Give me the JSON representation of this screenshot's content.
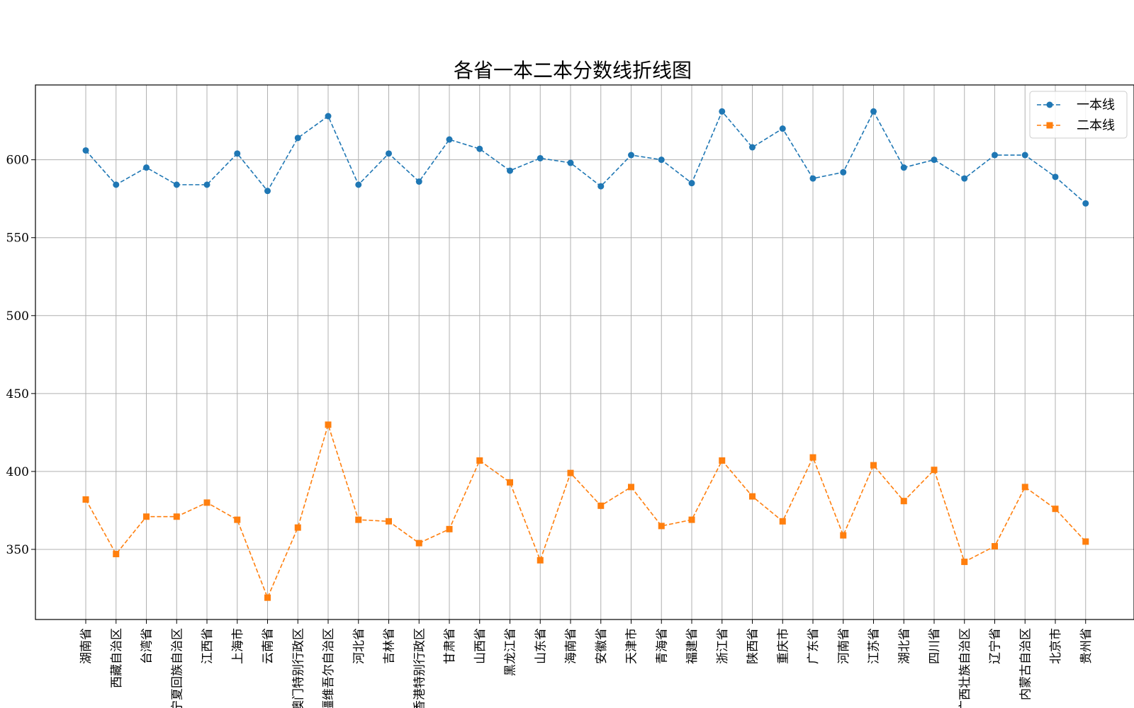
{
  "chart_data": {
    "type": "line",
    "title": "各省一本二本分数线折线图",
    "xlabel": "",
    "ylabel": "",
    "categories": [
      "湖南省",
      "西藏自治区",
      "台湾省",
      "宁夏回族自治区",
      "江西省",
      "上海市",
      "云南省",
      "澳门特别行政区",
      "新疆维吾尔自治区",
      "河北省",
      "吉林省",
      "香港特别行政区",
      "甘肃省",
      "山西省",
      "黑龙江省",
      "山东省",
      "海南省",
      "安徽省",
      "天津市",
      "青海省",
      "福建省",
      "浙江省",
      "陕西省",
      "重庆市",
      "广东省",
      "河南省",
      "江苏省",
      "湖北省",
      "四川省",
      "广西壮族自治区",
      "辽宁省",
      "内蒙古自治区",
      "北京市",
      "贵州省"
    ],
    "series": [
      {
        "name": "一本线",
        "color": "#1f77b4",
        "marker": "circle",
        "linestyle": "dashed",
        "values": [
          606,
          584,
          595,
          584,
          584,
          604,
          580,
          614,
          628,
          584,
          604,
          586,
          613,
          607,
          593,
          601,
          598,
          583,
          603,
          600,
          585,
          631,
          608,
          620,
          588,
          592,
          631,
          595,
          600,
          588,
          603,
          603,
          589,
          572
        ]
      },
      {
        "name": "二本线",
        "color": "#ff7f0e",
        "marker": "square",
        "linestyle": "dashed",
        "values": [
          382,
          347,
          371,
          371,
          380,
          369,
          319,
          364,
          430,
          369,
          368,
          354,
          363,
          407,
          393,
          343,
          399,
          378,
          390,
          365,
          369,
          407,
          384,
          368,
          409,
          359,
          404,
          381,
          401,
          342,
          352,
          390,
          376,
          355
        ]
      }
    ],
    "yticks": [
      350,
      400,
      450,
      500,
      550,
      600
    ],
    "ylim": [
      305,
      648
    ],
    "grid": true,
    "legend_position": "top-right"
  }
}
